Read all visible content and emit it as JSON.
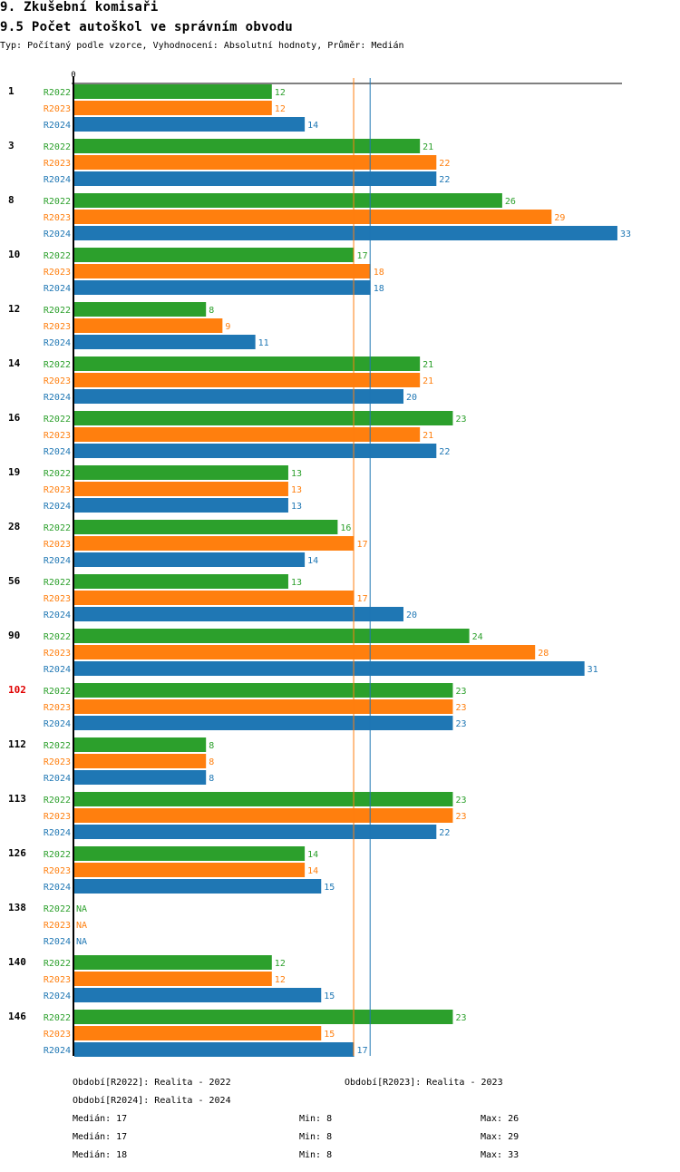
{
  "header": {
    "section": "9. Zkušební komisaři",
    "title": "9.5 Počet autoškol ve správním obvodu",
    "subtitle": "Typ: Počítaný podle vzorce, Vyhodnocení: Absolutní hodnoty, Průměr: Medián"
  },
  "colors": {
    "R2022": "#2ca02c",
    "R2023": "#ff7f0e",
    "R2024": "#1f77b4",
    "highlight": "#e00000"
  },
  "chart_data": {
    "type": "bar",
    "orientation": "horizontal",
    "title": "9.5 Počet autoškol ve správním obvodu",
    "xlabel": "",
    "ylabel": "",
    "x_tick_labels": [
      "0"
    ],
    "xlim": [
      0,
      33
    ],
    "highlighted_category": "102",
    "categories": [
      "1",
      "3",
      "8",
      "10",
      "12",
      "14",
      "16",
      "19",
      "28",
      "56",
      "90",
      "102",
      "112",
      "113",
      "126",
      "138",
      "140",
      "146"
    ],
    "series": [
      {
        "name": "R2022",
        "values": [
          12,
          21,
          26,
          17,
          8,
          21,
          23,
          13,
          16,
          13,
          24,
          23,
          8,
          23,
          14,
          null,
          12,
          23
        ]
      },
      {
        "name": "R2023",
        "values": [
          12,
          22,
          29,
          18,
          9,
          21,
          21,
          13,
          17,
          17,
          28,
          23,
          8,
          23,
          14,
          null,
          12,
          15
        ]
      },
      {
        "name": "R2024",
        "values": [
          14,
          22,
          33,
          18,
          11,
          20,
          22,
          13,
          14,
          20,
          31,
          23,
          8,
          22,
          15,
          null,
          15,
          17
        ]
      }
    ],
    "na_label": "NA",
    "reference_lines": [
      {
        "series": "R2023",
        "label": "Medián",
        "value": 17
      },
      {
        "series": "R2024",
        "label": "Medián",
        "value": 18
      }
    ],
    "legend": [
      {
        "series": "R2022",
        "text": "Období[R2022]: Realita - 2022"
      },
      {
        "series": "R2023",
        "text": "Období[R2023]: Realita - 2023"
      },
      {
        "series": "R2024",
        "text": "Období[R2024]: Realita - 2024"
      }
    ],
    "stats": [
      {
        "series": "R2022",
        "median": "Medián: 17",
        "min": "Min: 8",
        "max": "Max: 26"
      },
      {
        "series": "R2023",
        "median": "Medián: 17",
        "min": "Min: 8",
        "max": "Max: 29"
      },
      {
        "series": "R2024",
        "median": "Medián: 18",
        "min": "Min: 8",
        "max": "Max: 33"
      }
    ]
  }
}
